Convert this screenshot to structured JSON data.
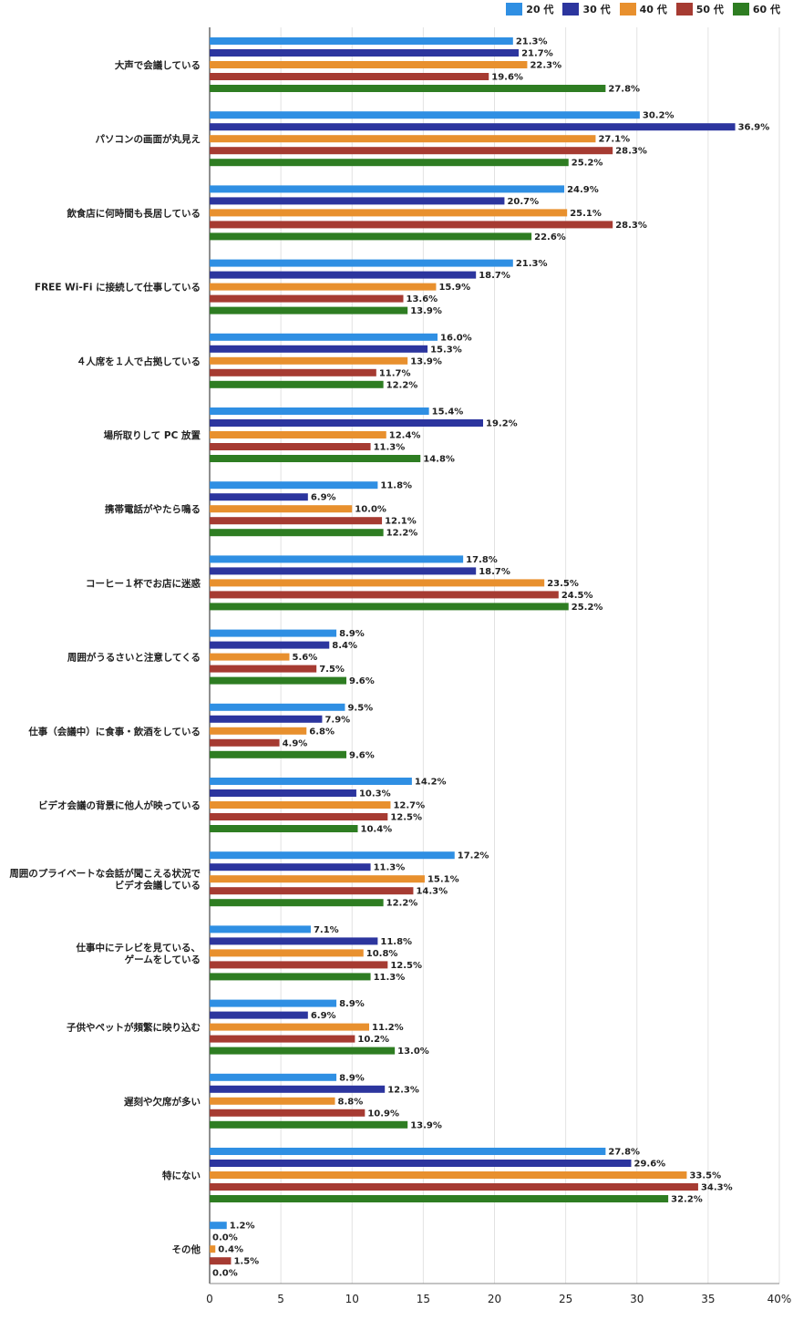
{
  "chart_data": {
    "type": "bar",
    "orientation": "horizontal",
    "categories": [
      "大声で会議している",
      "パソコンの画面が丸見え",
      "飲食店に何時間も長居している",
      "FREE Wi-Fi に接続して仕事している",
      "４人席を１人で占拠している",
      "場所取りして PC 放置",
      "携帯電話がやたら鳴る",
      "コーヒー１杯でお店に迷惑",
      "周囲がうるさいと注意してくる",
      "仕事（会議中）に食事・飲酒をしている",
      "ビデオ会議の背景に他人が映っている",
      "周囲のプライベートな会話が聞こえる状況で\nビデオ会議している",
      "仕事中にテレビを見ている、\nゲームをしている",
      "子供やペットが頻繁に映り込む",
      "遅刻や欠席が多い",
      "特にない",
      "その他"
    ],
    "series": [
      {
        "name": "20 代",
        "color": "#2f8fe3",
        "values": [
          21.3,
          30.2,
          24.9,
          21.3,
          16.0,
          15.4,
          11.8,
          17.8,
          8.9,
          9.5,
          14.2,
          17.2,
          7.1,
          8.9,
          8.9,
          27.8,
          1.2
        ]
      },
      {
        "name": "30 代",
        "color": "#2c359e",
        "values": [
          21.7,
          36.9,
          20.7,
          18.7,
          15.3,
          19.2,
          6.9,
          18.7,
          8.4,
          7.9,
          10.3,
          11.3,
          11.8,
          6.9,
          12.3,
          29.6,
          0.0
        ]
      },
      {
        "name": "40 代",
        "color": "#e8902e",
        "values": [
          22.3,
          27.1,
          25.1,
          15.9,
          13.9,
          12.4,
          10.0,
          23.5,
          5.6,
          6.8,
          12.7,
          15.1,
          10.8,
          11.2,
          8.8,
          33.5,
          0.4
        ]
      },
      {
        "name": "50 代",
        "color": "#a63b32",
        "values": [
          19.6,
          28.3,
          28.3,
          13.6,
          11.7,
          11.3,
          12.1,
          24.5,
          7.5,
          4.9,
          12.5,
          14.3,
          12.5,
          10.2,
          10.9,
          34.3,
          1.5
        ]
      },
      {
        "name": "60 代",
        "color": "#2e7d22",
        "values": [
          27.8,
          25.2,
          22.6,
          13.9,
          12.2,
          14.8,
          12.2,
          25.2,
          9.6,
          9.6,
          10.4,
          12.2,
          11.3,
          13.0,
          13.9,
          32.2,
          0.0
        ]
      }
    ],
    "value_suffix": "%",
    "xlim": [
      0,
      40
    ],
    "x_ticks": [
      "0",
      "5",
      "10",
      "15",
      "20",
      "25",
      "30",
      "35",
      "40%"
    ],
    "grid": true,
    "legend_position": "top-right",
    "title": "",
    "xlabel": "",
    "ylabel": ""
  }
}
